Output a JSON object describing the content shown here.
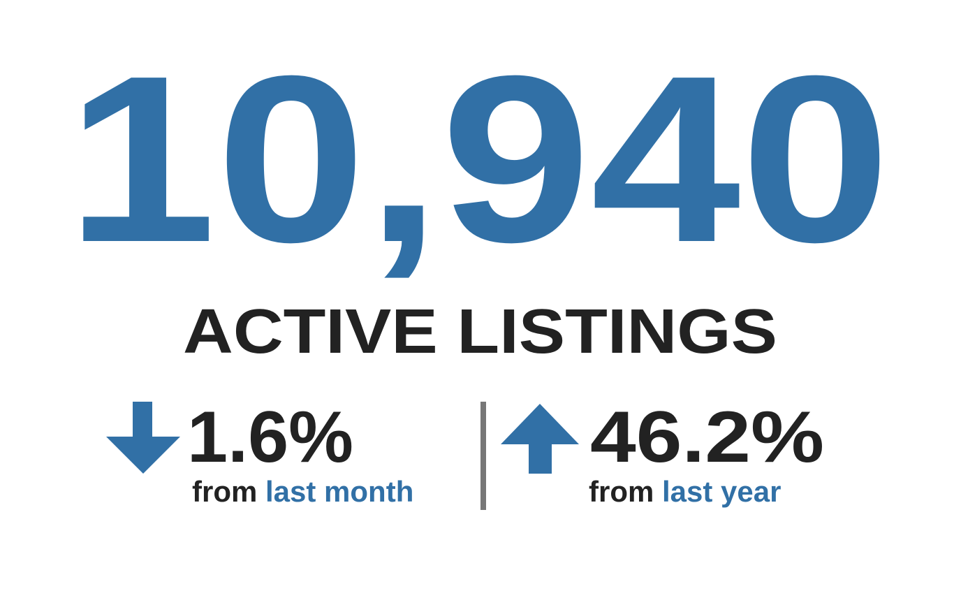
{
  "headline": {
    "value": "10,940",
    "label": "ACTIVE LISTINGS"
  },
  "stats": [
    {
      "change": "1.6%",
      "prefix": "from",
      "period": "last month"
    },
    {
      "change": "46.2%",
      "prefix": "from",
      "period": "last year"
    }
  ]
}
